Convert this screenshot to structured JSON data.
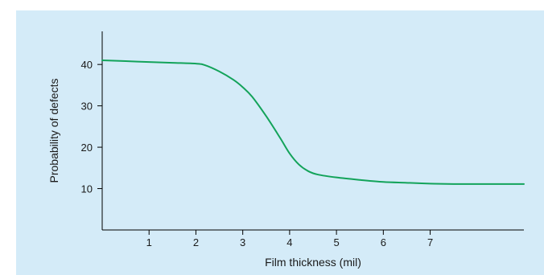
{
  "colors": {
    "panel_background": "#d4ebf8",
    "axis": "#000000",
    "curve": "#13a35a"
  },
  "chart_data": {
    "type": "line",
    "xlabel": "Film thickness (mil)",
    "ylabel": "Probability of defects",
    "xlim": [
      0,
      9
    ],
    "ylim": [
      0,
      48
    ],
    "x_ticks": [
      1,
      2,
      3,
      4,
      5,
      6,
      7
    ],
    "y_ticks": [
      10,
      20,
      30,
      40
    ],
    "grid": false,
    "series": [
      {
        "x": [
          0.0,
          0.5,
          1.0,
          1.5,
          2.0,
          2.2,
          2.5,
          2.8,
          3.0,
          3.2,
          3.5,
          3.8,
          4.0,
          4.2,
          4.4,
          4.6,
          5.0,
          5.5,
          6.0,
          6.5,
          7.0,
          7.5,
          8.0,
          9.0
        ],
        "y": [
          41.0,
          40.8,
          40.6,
          40.4,
          40.2,
          39.8,
          38.3,
          36.3,
          34.5,
          32.2,
          27.5,
          22.2,
          18.5,
          15.8,
          14.2,
          13.4,
          12.7,
          12.1,
          11.6,
          11.4,
          11.2,
          11.1,
          11.1,
          11.1
        ]
      }
    ]
  }
}
